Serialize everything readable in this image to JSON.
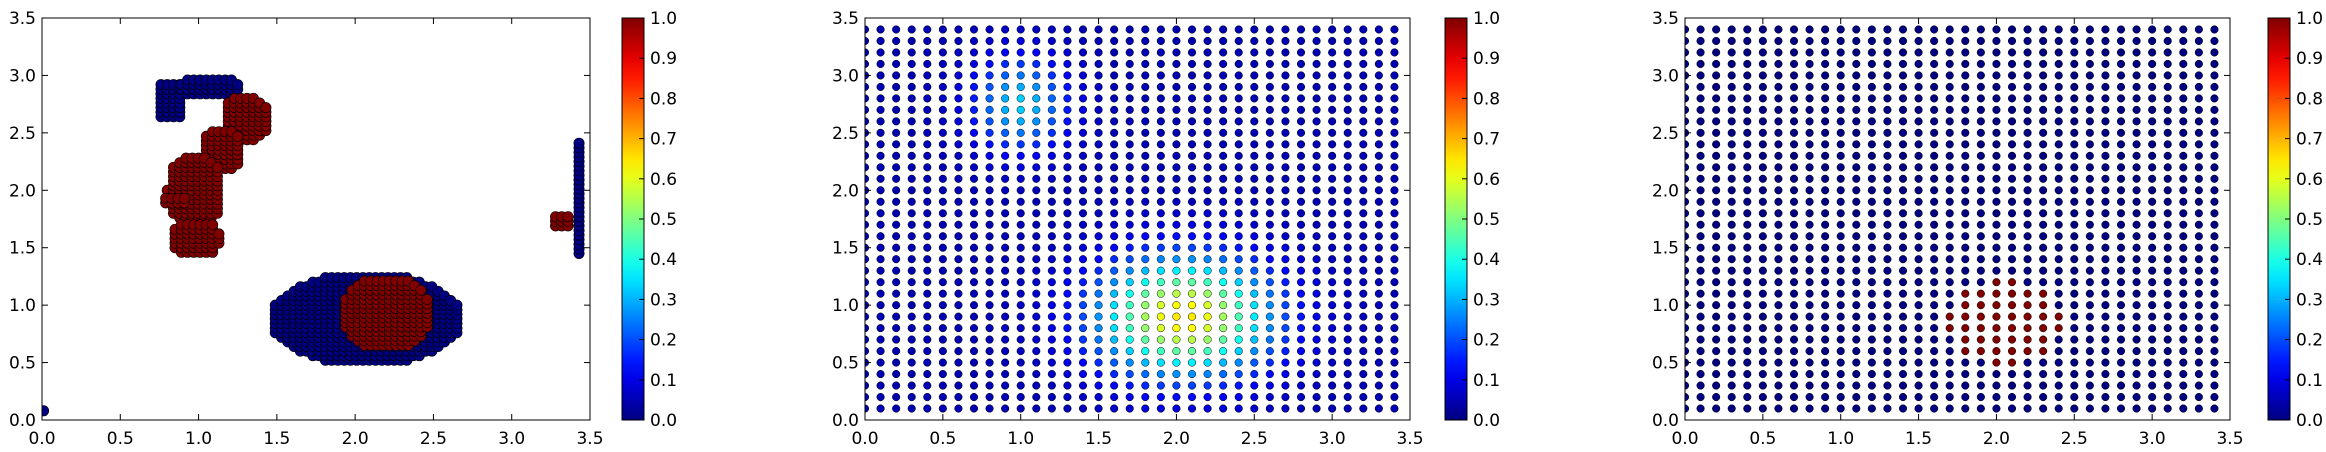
{
  "chart_data": [
    {
      "type": "scatter",
      "title": "",
      "xlabel": "",
      "ylabel": "",
      "xlim": [
        0,
        3.5
      ],
      "ylim": [
        0,
        3.5
      ],
      "xticks": [
        "0.0",
        "0.5",
        "1.0",
        "1.5",
        "2.0",
        "2.5",
        "3.0",
        "3.5"
      ],
      "yticks": [
        "0.0",
        "0.5",
        "1.0",
        "1.5",
        "2.0",
        "2.5",
        "3.0",
        "3.5"
      ],
      "colormap": "jet",
      "color_range": [
        0,
        1
      ],
      "colorbar_ticks": [
        "0.0",
        "0.1",
        "0.2",
        "0.3",
        "0.4",
        "0.5",
        "0.6",
        "0.7",
        "0.8",
        "0.9",
        "1.0"
      ],
      "grid": false,
      "clusters": [
        {
          "shape": "ellipse",
          "center": [
            0.82,
            2.78
          ],
          "radii": [
            0.1,
            0.18
          ],
          "value": 0.0
        },
        {
          "shape": "ellipse",
          "center": [
            1.07,
            2.9
          ],
          "radii": [
            0.22,
            0.1
          ],
          "value": 0.0
        },
        {
          "shape": "ellipse",
          "center": [
            1.3,
            2.62
          ],
          "radii": [
            0.15,
            0.22
          ],
          "value": 1.0
        },
        {
          "shape": "ellipse",
          "center": [
            1.15,
            2.35
          ],
          "radii": [
            0.14,
            0.2
          ],
          "value": 1.0
        },
        {
          "shape": "ellipse",
          "center": [
            0.98,
            2.0
          ],
          "radii": [
            0.18,
            0.32
          ],
          "value": 1.0
        },
        {
          "shape": "ellipse",
          "center": [
            0.85,
            1.9
          ],
          "radii": [
            0.1,
            0.05
          ],
          "value": 1.0
        },
        {
          "shape": "ellipse",
          "center": [
            0.98,
            1.58
          ],
          "radii": [
            0.17,
            0.16
          ],
          "value": 1.0
        },
        {
          "shape": "ellipse",
          "center": [
            2.07,
            0.88
          ],
          "radii": [
            0.62,
            0.4
          ],
          "value": 0.0
        },
        {
          "shape": "ellipse",
          "center": [
            2.2,
            0.93
          ],
          "radii": [
            0.3,
            0.32
          ],
          "value": 1.0
        },
        {
          "shape": "ellipse",
          "center": [
            3.43,
            1.95
          ],
          "radii": [
            0.04,
            0.5
          ],
          "value": 0.0
        },
        {
          "shape": "ellipse",
          "center": [
            3.32,
            1.72
          ],
          "radii": [
            0.08,
            0.07
          ],
          "value": 1.0
        },
        {
          "shape": "point",
          "center": [
            0.0,
            0.08
          ],
          "radii": [
            0.03,
            0.04
          ],
          "value": 0.0
        }
      ]
    },
    {
      "type": "scatter",
      "title": "",
      "xlabel": "",
      "ylabel": "",
      "xlim": [
        0,
        3.5
      ],
      "ylim": [
        0,
        3.5
      ],
      "xticks": [
        "0.0",
        "0.5",
        "1.0",
        "1.5",
        "2.0",
        "2.5",
        "3.0",
        "3.5"
      ],
      "yticks": [
        "0.0",
        "0.5",
        "1.0",
        "1.5",
        "2.0",
        "2.5",
        "3.0",
        "3.5"
      ],
      "colormap": "jet",
      "color_range": [
        0,
        1
      ],
      "colorbar_ticks": [
        "0.0",
        "0.1",
        "0.2",
        "0.3",
        "0.4",
        "0.5",
        "0.6",
        "0.7",
        "0.8",
        "0.9",
        "1.0"
      ],
      "grid": false,
      "points": {
        "x_start": 0.0,
        "x_step": 0.1,
        "x_count": 35,
        "y_start": 0.1,
        "y_step": 0.1,
        "y_count": 34
      },
      "value_field": {
        "baseline": 0.05,
        "bumps": [
          {
            "center": [
              2.05,
              0.9
            ],
            "sigma": [
              0.55,
              0.5
            ],
            "amplitude": 0.6
          },
          {
            "center": [
              1.0,
              2.75
            ],
            "sigma": [
              0.3,
              0.4
            ],
            "amplitude": 0.28
          }
        ]
      }
    },
    {
      "type": "scatter",
      "title": "",
      "xlabel": "",
      "ylabel": "",
      "xlim": [
        0,
        3.5
      ],
      "ylim": [
        0,
        3.5
      ],
      "xticks": [
        "0.0",
        "0.5",
        "1.0",
        "1.5",
        "2.0",
        "2.5",
        "3.0",
        "3.5"
      ],
      "yticks": [
        "0.0",
        "0.5",
        "1.0",
        "1.5",
        "2.0",
        "2.5",
        "3.0",
        "3.5"
      ],
      "colormap": "jet",
      "color_range": [
        0,
        1
      ],
      "colorbar_ticks": [
        "0.0",
        "0.1",
        "0.2",
        "0.3",
        "0.4",
        "0.5",
        "0.6",
        "0.7",
        "0.8",
        "0.9",
        "1.0"
      ],
      "grid": false,
      "points": {
        "x_start": 0.0,
        "x_step": 0.1,
        "x_count": 35,
        "y_start": 0.1,
        "y_step": 0.1,
        "y_count": 34
      },
      "highlight_region": {
        "center": [
          2.05,
          0.85
        ],
        "radius": 0.36,
        "value": 1.0
      },
      "background_value": 0.0
    }
  ]
}
